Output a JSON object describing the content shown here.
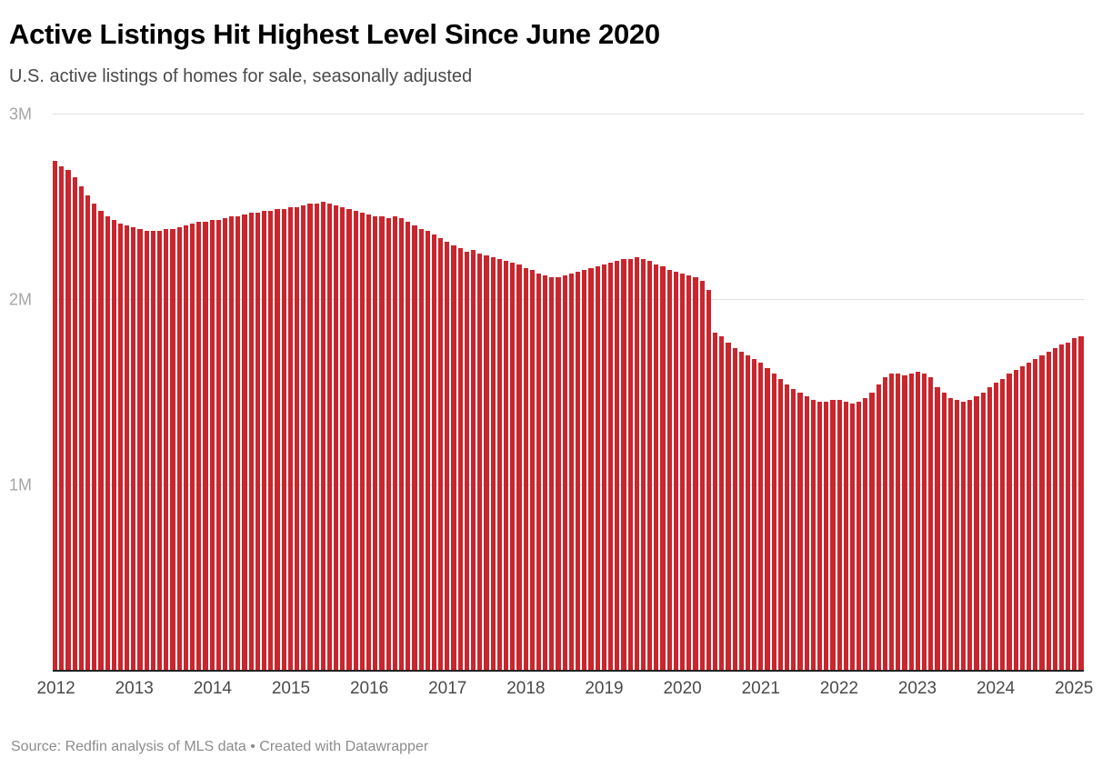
{
  "header": {
    "title": "Active Listings Hit Highest Level Since June 2020",
    "subtitle": "U.S. active listings of homes for sale, seasonally adjusted"
  },
  "footer": {
    "source": "Source: Redfin analysis of MLS data • Created with Datawrapper"
  },
  "chart_data": {
    "type": "bar",
    "title": "Active Listings Hit Highest Level Since June 2020",
    "subtitle": "U.S. active listings of homes for sale, seasonally adjusted",
    "unit": "millions of listings",
    "x_start": "2012-01",
    "x_end": "2025-02",
    "xlabel": "",
    "ylabel": "",
    "ylim": [
      0,
      3
    ],
    "grid": "horizontal",
    "legend": "none",
    "bar_color": "#c9262d",
    "axis_line_color": "#222222",
    "gridline_color": "#e1e1e1",
    "yticks": [
      {
        "label": "1M",
        "value": 1
      },
      {
        "label": "2M",
        "value": 2
      },
      {
        "label": "3M",
        "value": 3
      }
    ],
    "x_year_labels": [
      "2012",
      "2013",
      "2014",
      "2015",
      "2016",
      "2017",
      "2018",
      "2019",
      "2020",
      "2021",
      "2022",
      "2023",
      "2024",
      "2025"
    ],
    "values": [
      2.75,
      2.72,
      2.7,
      2.66,
      2.61,
      2.56,
      2.52,
      2.48,
      2.45,
      2.43,
      2.41,
      2.4,
      2.39,
      2.38,
      2.37,
      2.37,
      2.37,
      2.38,
      2.38,
      2.39,
      2.4,
      2.41,
      2.42,
      2.42,
      2.43,
      2.43,
      2.44,
      2.45,
      2.45,
      2.46,
      2.47,
      2.47,
      2.48,
      2.48,
      2.49,
      2.49,
      2.5,
      2.5,
      2.51,
      2.52,
      2.52,
      2.53,
      2.52,
      2.51,
      2.5,
      2.49,
      2.48,
      2.47,
      2.46,
      2.45,
      2.45,
      2.44,
      2.45,
      2.44,
      2.42,
      2.4,
      2.38,
      2.37,
      2.35,
      2.33,
      2.31,
      2.29,
      2.28,
      2.26,
      2.27,
      2.25,
      2.24,
      2.23,
      2.22,
      2.21,
      2.2,
      2.19,
      2.17,
      2.16,
      2.14,
      2.13,
      2.12,
      2.12,
      2.13,
      2.14,
      2.15,
      2.16,
      2.17,
      2.18,
      2.19,
      2.2,
      2.21,
      2.22,
      2.22,
      2.23,
      2.22,
      2.21,
      2.19,
      2.18,
      2.16,
      2.15,
      2.14,
      2.13,
      2.12,
      2.1,
      2.05,
      1.82,
      1.8,
      1.77,
      1.74,
      1.72,
      1.7,
      1.68,
      1.66,
      1.63,
      1.6,
      1.57,
      1.54,
      1.52,
      1.5,
      1.48,
      1.46,
      1.45,
      1.45,
      1.46,
      1.46,
      1.45,
      1.44,
      1.45,
      1.47,
      1.5,
      1.54,
      1.58,
      1.6,
      1.6,
      1.59,
      1.6,
      1.61,
      1.6,
      1.58,
      1.53,
      1.5,
      1.47,
      1.46,
      1.45,
      1.46,
      1.48,
      1.5,
      1.53,
      1.55,
      1.57,
      1.6,
      1.62,
      1.64,
      1.66,
      1.68,
      1.7,
      1.72,
      1.74,
      1.76,
      1.77,
      1.79,
      1.8
    ]
  }
}
